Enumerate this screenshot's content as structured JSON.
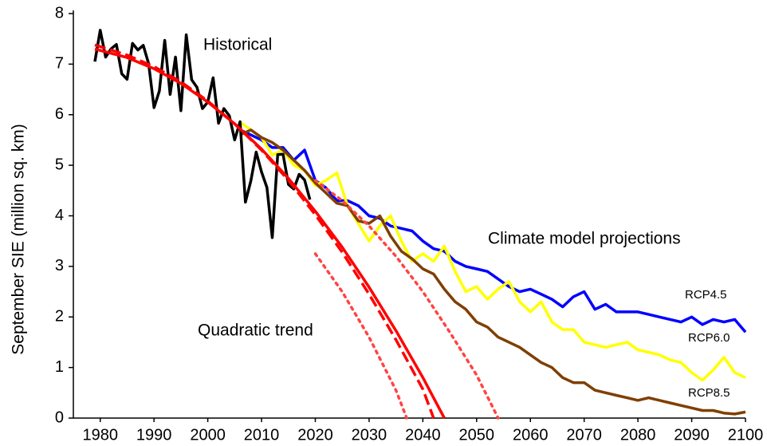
{
  "chart_data": {
    "type": "line",
    "y_label": "September SIE (million sq. km)",
    "annotation": "Climate model projections",
    "xlim": [
      1975,
      2100
    ],
    "xticks": [
      1980,
      1990,
      2000,
      2010,
      2020,
      2030,
      2040,
      2050,
      2060,
      2070,
      2080,
      2090,
      2100
    ],
    "ylim": [
      0,
      8
    ],
    "yticks": [
      0,
      1,
      2,
      3,
      4,
      5,
      6,
      7,
      8
    ],
    "series": [
      {
        "name": "RCP4.5",
        "color": "#0000ff",
        "dash": "solid",
        "x": [
          2006,
          2008,
          2010,
          2012,
          2014,
          2016,
          2018,
          2020,
          2022,
          2024,
          2026,
          2028,
          2030,
          2032,
          2034,
          2036,
          2038,
          2040,
          2042,
          2044,
          2046,
          2048,
          2050,
          2052,
          2054,
          2056,
          2058,
          2060,
          2062,
          2064,
          2066,
          2068,
          2070,
          2072,
          2074,
          2076,
          2078,
          2080,
          2082,
          2084,
          2086,
          2088,
          2090,
          2092,
          2094,
          2096,
          2098,
          2100
        ],
        "values": [
          5.7,
          5.6,
          5.5,
          5.35,
          5.35,
          5.1,
          5.3,
          4.7,
          4.55,
          4.3,
          4.3,
          4.2,
          4.0,
          3.95,
          3.8,
          3.75,
          3.7,
          3.5,
          3.35,
          3.3,
          3.1,
          3.0,
          2.95,
          2.9,
          2.75,
          2.6,
          2.5,
          2.55,
          2.45,
          2.35,
          2.2,
          2.4,
          2.5,
          2.15,
          2.25,
          2.1,
          2.1,
          2.1,
          2.05,
          2.0,
          1.95,
          1.9,
          2.0,
          1.85,
          1.95,
          1.9,
          1.95,
          1.7
        ]
      },
      {
        "name": "RCP6.0",
        "color": "#ffff00",
        "dash": "solid",
        "x": [
          2006,
          2008,
          2010,
          2012,
          2014,
          2016,
          2018,
          2020,
          2022,
          2024,
          2026,
          2028,
          2030,
          2032,
          2034,
          2036,
          2038,
          2040,
          2042,
          2044,
          2046,
          2048,
          2050,
          2052,
          2054,
          2056,
          2058,
          2060,
          2062,
          2064,
          2066,
          2068,
          2070,
          2072,
          2074,
          2076,
          2078,
          2080,
          2082,
          2084,
          2086,
          2088,
          2090,
          2092,
          2094,
          2096,
          2098,
          2100
        ],
        "values": [
          5.85,
          5.7,
          5.55,
          5.2,
          5.3,
          5.0,
          4.9,
          4.6,
          4.7,
          4.85,
          4.2,
          3.85,
          3.5,
          3.8,
          4.0,
          3.5,
          3.1,
          3.25,
          3.1,
          3.4,
          2.9,
          2.5,
          2.6,
          2.35,
          2.55,
          2.7,
          2.3,
          2.1,
          2.3,
          1.9,
          1.75,
          1.75,
          1.5,
          1.45,
          1.4,
          1.45,
          1.5,
          1.35,
          1.3,
          1.25,
          1.15,
          1.1,
          0.9,
          0.75,
          0.95,
          1.2,
          0.9,
          0.8
        ]
      },
      {
        "name": "RCP8.5",
        "color": "#7f3f00",
        "dash": "solid",
        "x": [
          2006,
          2008,
          2010,
          2012,
          2014,
          2016,
          2018,
          2020,
          2022,
          2024,
          2026,
          2028,
          2030,
          2032,
          2034,
          2036,
          2038,
          2040,
          2042,
          2044,
          2046,
          2048,
          2050,
          2052,
          2054,
          2056,
          2058,
          2060,
          2062,
          2064,
          2066,
          2068,
          2070,
          2072,
          2074,
          2076,
          2078,
          2080,
          2082,
          2084,
          2086,
          2088,
          2090,
          2092,
          2094,
          2096,
          2098,
          2100
        ],
        "values": [
          5.6,
          5.7,
          5.55,
          5.45,
          5.3,
          5.1,
          4.9,
          4.65,
          4.45,
          4.25,
          4.2,
          3.9,
          3.85,
          4.0,
          3.6,
          3.3,
          3.15,
          2.95,
          2.85,
          2.55,
          2.3,
          2.15,
          1.9,
          1.8,
          1.6,
          1.5,
          1.4,
          1.25,
          1.1,
          1.0,
          0.8,
          0.7,
          0.7,
          0.55,
          0.5,
          0.45,
          0.4,
          0.35,
          0.4,
          0.35,
          0.3,
          0.25,
          0.2,
          0.15,
          0.15,
          0.1,
          0.08,
          0.12
        ]
      },
      {
        "name": "Historical",
        "color": "#000000",
        "dash": "solid",
        "x": [
          1979,
          1980,
          1981,
          1982,
          1983,
          1984,
          1985,
          1986,
          1987,
          1988,
          1989,
          1990,
          1991,
          1992,
          1993,
          1994,
          1995,
          1996,
          1997,
          1998,
          1999,
          2000,
          2001,
          2002,
          2003,
          2004,
          2005,
          2006,
          2007,
          2008,
          2009,
          2010,
          2011,
          2012,
          2013,
          2014,
          2015,
          2016,
          2017,
          2018,
          2019
        ],
        "values": [
          7.05,
          7.67,
          7.14,
          7.3,
          7.39,
          6.81,
          6.7,
          7.41,
          7.28,
          7.37,
          7.01,
          6.14,
          6.47,
          7.47,
          6.4,
          7.14,
          6.08,
          7.58,
          6.69,
          6.54,
          6.12,
          6.25,
          6.73,
          5.83,
          6.12,
          5.98,
          5.5,
          5.86,
          4.27,
          4.69,
          5.26,
          4.87,
          4.56,
          3.57,
          5.21,
          5.22,
          4.62,
          4.53,
          4.82,
          4.71,
          4.32
        ]
      },
      {
        "color": "#ff4444",
        "dash": "dotted",
        "x": [
          2020,
          2025,
          2030,
          2035,
          2037
        ],
        "values": [
          3.25,
          2.5,
          1.6,
          0.55,
          0
        ]
      },
      {
        "color": "#ff4444",
        "dash": "dotted",
        "x": [
          2020,
          2025,
          2030,
          2035,
          2040,
          2045,
          2050,
          2054
        ],
        "values": [
          4.7,
          4.3,
          3.8,
          3.2,
          2.5,
          1.7,
          0.85,
          0
        ]
      },
      {
        "color": "#ff0000",
        "dash": "dashed",
        "x": [
          1979,
          1985,
          1990,
          1995,
          2000,
          2005,
          2010,
          2015,
          2020,
          2025,
          2030,
          2035,
          2040,
          2042
        ],
        "values": [
          7.38,
          7.18,
          6.95,
          6.65,
          6.27,
          5.82,
          5.3,
          4.7,
          4.02,
          3.28,
          2.45,
          1.55,
          0.57,
          0
        ]
      },
      {
        "name": "Quadratic trend",
        "color": "#ff0000",
        "dash": "solid",
        "x": [
          1979,
          1985,
          1990,
          1995,
          2000,
          2005,
          2010,
          2015,
          2020,
          2025,
          2030,
          2035,
          2040,
          2044
        ],
        "values": [
          7.3,
          7.13,
          6.91,
          6.62,
          6.25,
          5.82,
          5.32,
          4.74,
          4.09,
          3.38,
          2.59,
          1.73,
          0.8,
          0
        ]
      }
    ]
  }
}
